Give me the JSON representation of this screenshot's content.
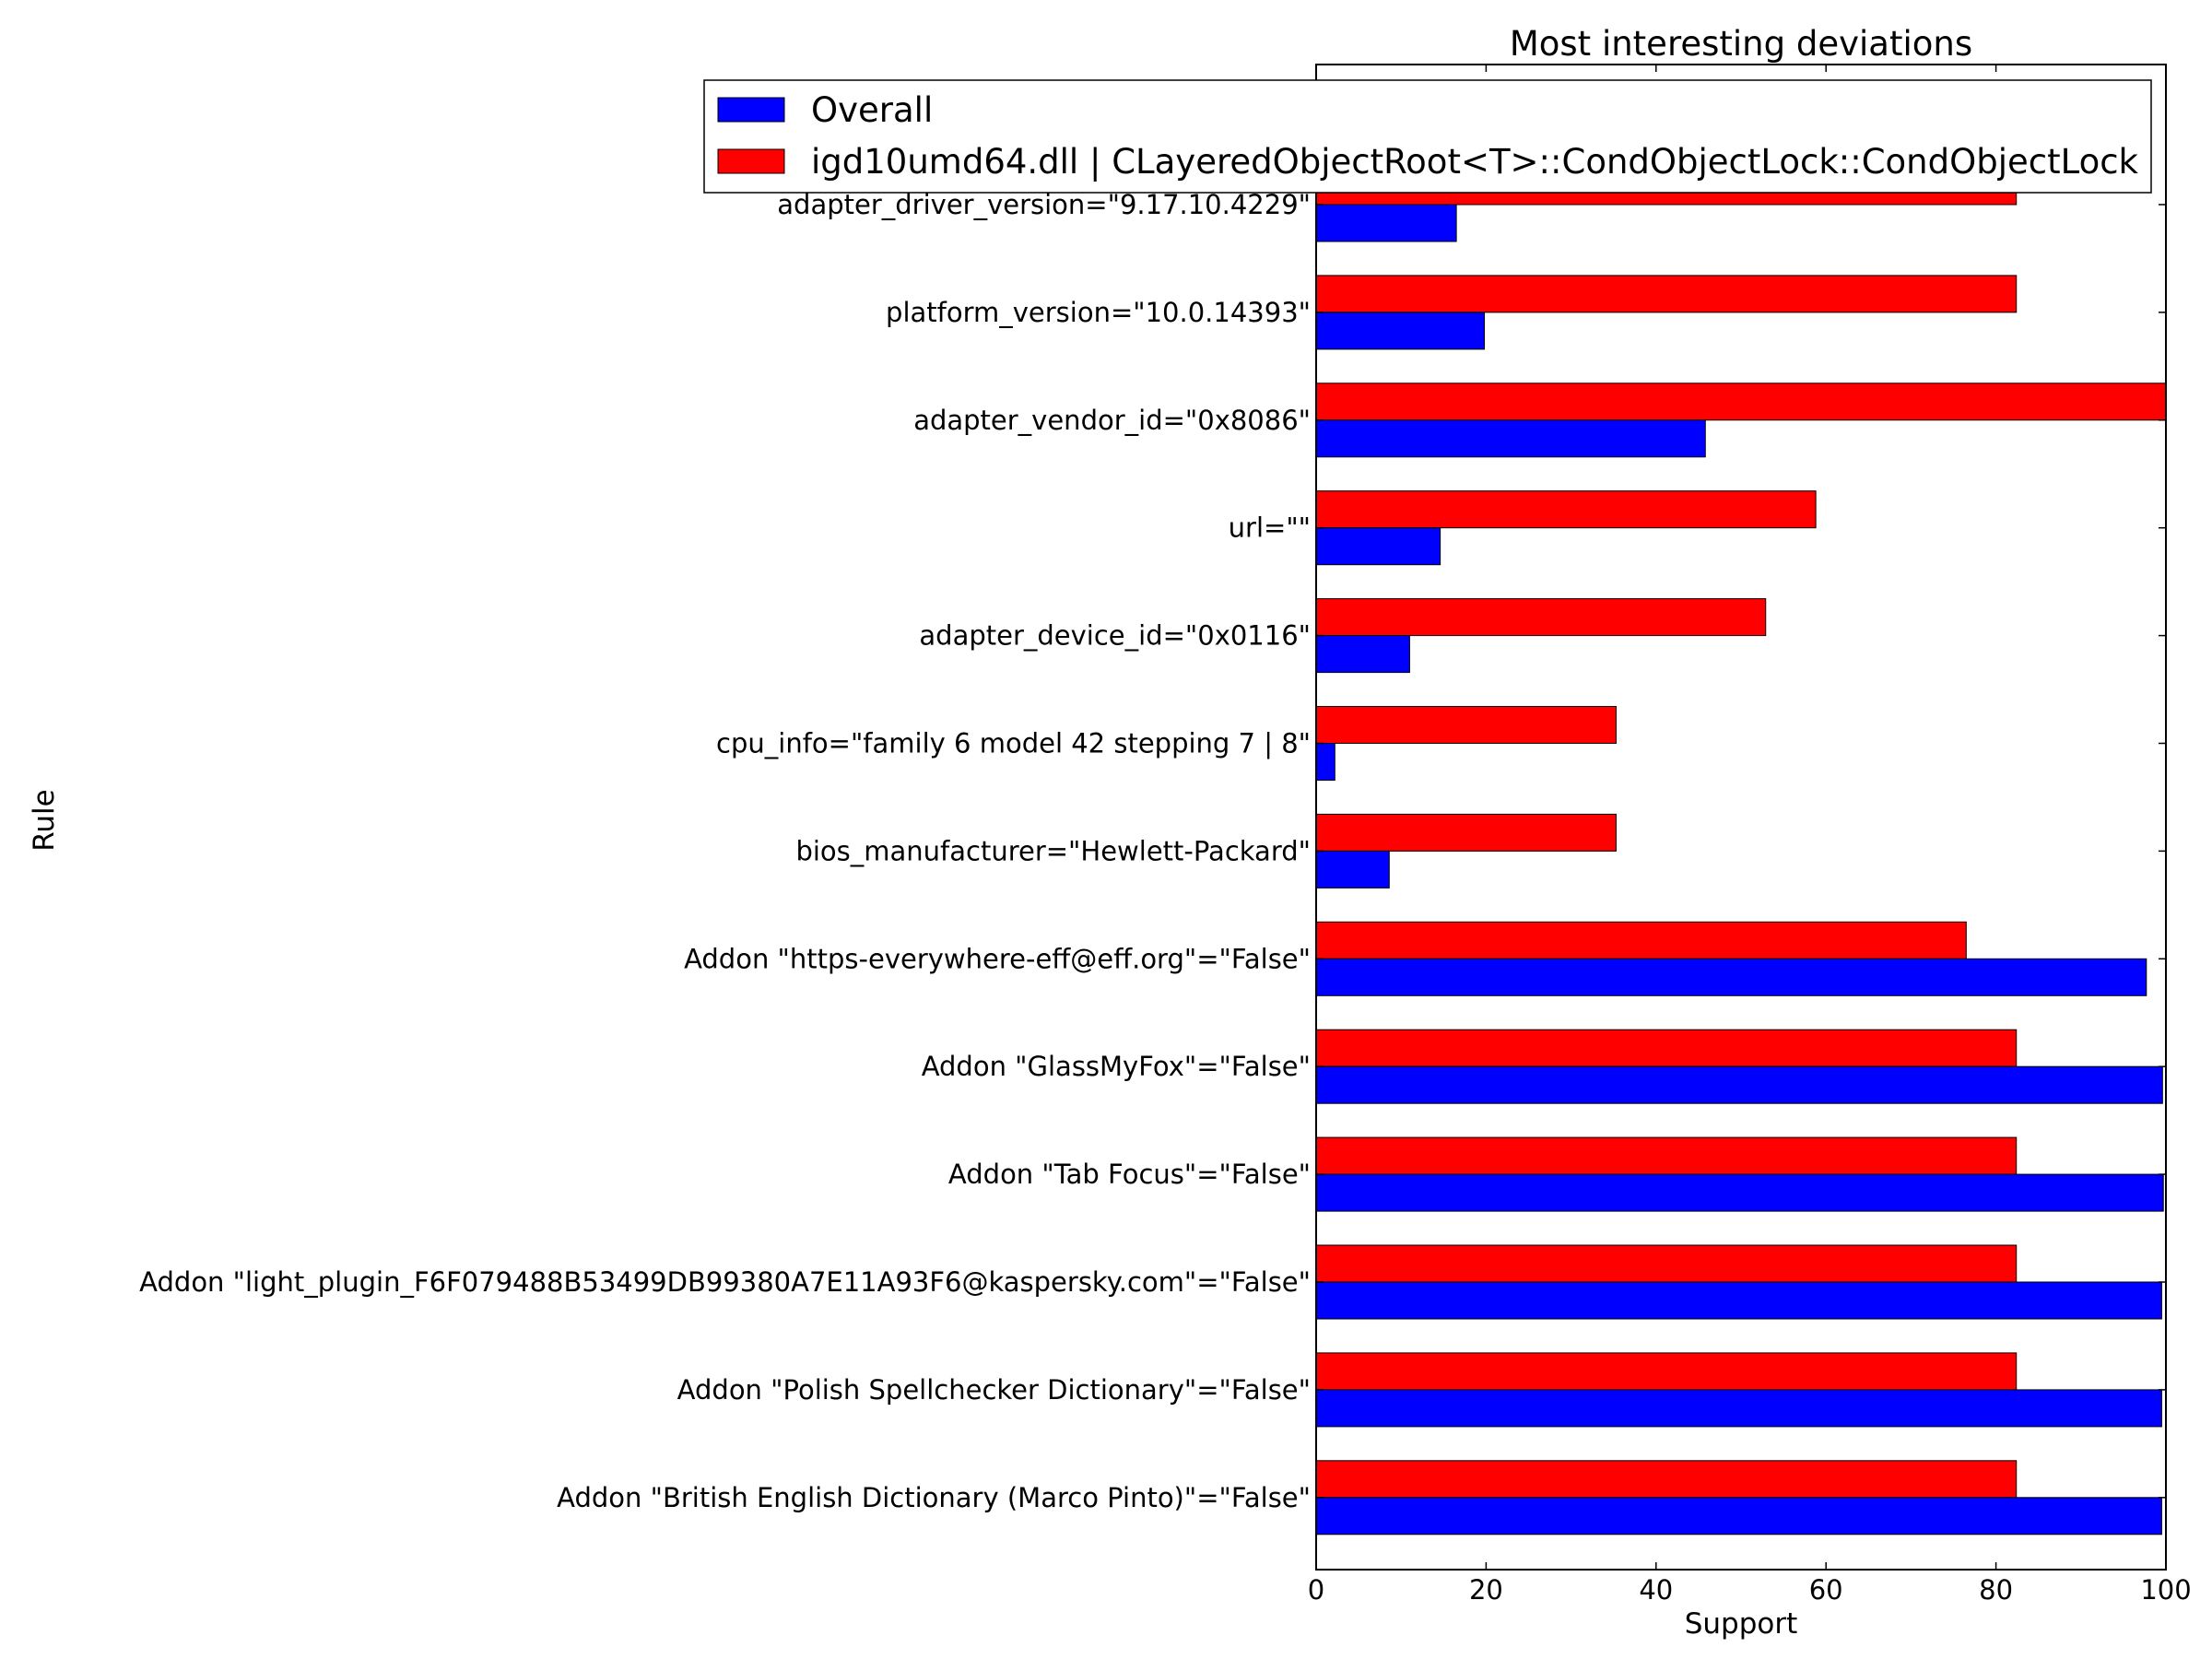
{
  "chart_data": {
    "type": "bar",
    "orientation": "horizontal",
    "title": "Most interesting deviations",
    "xlabel": "Support",
    "ylabel": "Rule",
    "xlim": [
      0,
      100
    ],
    "xticks": [
      "0",
      "20",
      "40",
      "60",
      "80",
      "100"
    ],
    "legend_position": "top-right",
    "categories": [
      "adapter_driver_version=\"9.17.10.4229\"",
      "platform_version=\"10.0.14393\"",
      "adapter_vendor_id=\"0x8086\"",
      "url=\"\"",
      "adapter_device_id=\"0x0116\"",
      "cpu_info=\"family 6 model 42 stepping 7 | 8\"",
      "bios_manufacturer=\"Hewlett-Packard\"",
      "Addon \"https-everywhere-eff@eff.org\"=\"False\"",
      "Addon \"GlassMyFox\"=\"False\"",
      "Addon \"Tab Focus\"=\"False\"",
      "Addon \"light_plugin_F6F079488B53499DB99380A7E11A93F6@kaspersky.com\"=\"False\"",
      "Addon \"Polish Spellchecker Dictionary\"=\"False\"",
      "Addon \"British English Dictionary (Marco Pinto)\"=\"False\""
    ],
    "series": [
      {
        "name": "Overall",
        "color": "#0000ff",
        "values": [
          16.5,
          19.8,
          45.8,
          14.6,
          11,
          2.2,
          8.6,
          97.7,
          99.6,
          99.7,
          99.5,
          99.5,
          99.5
        ]
      },
      {
        "name": "igd10umd64.dll | CLayeredObjectRoot<T>::CondObjectLock::CondObjectLock",
        "color": "#ff0000",
        "values": [
          82.4,
          82.4,
          100,
          58.8,
          52.9,
          35.3,
          35.3,
          76.5,
          82.4,
          82.4,
          82.4,
          82.4,
          82.4
        ]
      }
    ]
  }
}
